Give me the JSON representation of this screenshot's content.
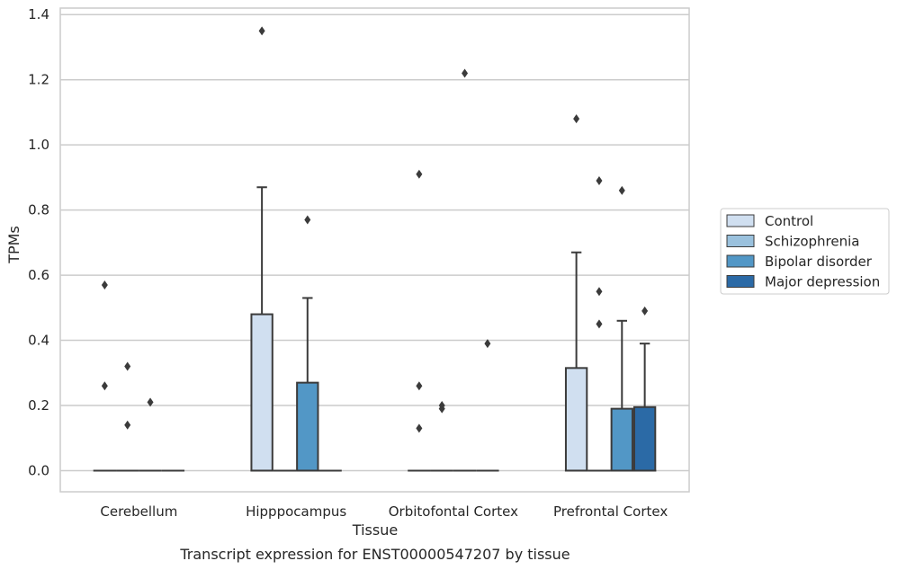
{
  "chart_data": {
    "type": "box",
    "title": "",
    "caption": "Transcript expression for ENST00000547207 by tissue",
    "xlabel": "Tissue",
    "ylabel": "TPMs",
    "ylim": [
      -0.065,
      1.42
    ],
    "yticks": [
      0.0,
      0.2,
      0.4,
      0.6,
      0.8,
      1.0,
      1.2,
      1.4
    ],
    "ytick_labels": [
      "0.0",
      "0.2",
      "0.4",
      "0.6",
      "0.8",
      "1.0",
      "1.2",
      "1.4"
    ],
    "grid": "horizontal",
    "legend_position": "right",
    "categories": [
      "Cerebellum",
      "Hipppocampus",
      "Orbitofontal Cortex",
      "Prefrontal Cortex"
    ],
    "series": [
      {
        "name": "Control",
        "color": "#d0dff0",
        "boxes": [
          {
            "q1": 0,
            "median": 0,
            "q3": 0,
            "whisker_low": 0,
            "whisker_high": 0,
            "outliers": [
              0.57,
              0.26
            ]
          },
          {
            "q1": 0,
            "median": 0,
            "q3": 0.48,
            "whisker_low": 0,
            "whisker_high": 0.87,
            "outliers": [
              1.35
            ]
          },
          {
            "q1": 0,
            "median": 0,
            "q3": 0,
            "whisker_low": 0,
            "whisker_high": 0,
            "outliers": [
              0.91,
              0.26,
              0.13
            ]
          },
          {
            "q1": 0,
            "median": 0,
            "q3": 0.315,
            "whisker_low": 0,
            "whisker_high": 0.67,
            "outliers": [
              1.08
            ]
          }
        ]
      },
      {
        "name": "Schizophrenia",
        "color": "#9ac1dd",
        "boxes": [
          {
            "q1": 0,
            "median": 0,
            "q3": 0,
            "whisker_low": 0,
            "whisker_high": 0,
            "outliers": [
              0.32,
              0.14
            ]
          },
          {
            "q1": 0,
            "median": 0,
            "q3": 0,
            "whisker_low": 0,
            "whisker_high": 0,
            "outliers": []
          },
          {
            "q1": 0,
            "median": 0,
            "q3": 0,
            "whisker_low": 0,
            "whisker_high": 0,
            "outliers": [
              0.2,
              0.19
            ]
          },
          {
            "q1": 0,
            "median": 0,
            "q3": 0,
            "whisker_low": 0,
            "whisker_high": 0,
            "outliers": [
              0.89,
              0.55,
              0.45
            ]
          }
        ]
      },
      {
        "name": "Bipolar disorder",
        "color": "#5297c6",
        "boxes": [
          {
            "q1": 0,
            "median": 0,
            "q3": 0,
            "whisker_low": 0,
            "whisker_high": 0,
            "outliers": [
              0.21
            ]
          },
          {
            "q1": 0,
            "median": 0,
            "q3": 0.27,
            "whisker_low": 0,
            "whisker_high": 0.53,
            "outliers": [
              0.77
            ]
          },
          {
            "q1": 0,
            "median": 0,
            "q3": 0,
            "whisker_low": 0,
            "whisker_high": 0,
            "outliers": [
              1.22
            ]
          },
          {
            "q1": 0,
            "median": 0,
            "q3": 0.19,
            "whisker_low": 0,
            "whisker_high": 0.46,
            "outliers": [
              0.86
            ]
          }
        ]
      },
      {
        "name": "Major depression",
        "color": "#2b6aa6",
        "boxes": [
          {
            "q1": 0,
            "median": 0,
            "q3": 0,
            "whisker_low": 0,
            "whisker_high": 0,
            "outliers": []
          },
          {
            "q1": 0,
            "median": 0,
            "q3": 0,
            "whisker_low": 0,
            "whisker_high": 0,
            "outliers": []
          },
          {
            "q1": 0,
            "median": 0,
            "q3": 0,
            "whisker_low": 0,
            "whisker_high": 0,
            "outliers": [
              0.39
            ]
          },
          {
            "q1": 0,
            "median": 0,
            "q3": 0.195,
            "whisker_low": 0,
            "whisker_high": 0.39,
            "outliers": [
              0.49
            ]
          }
        ]
      }
    ]
  }
}
